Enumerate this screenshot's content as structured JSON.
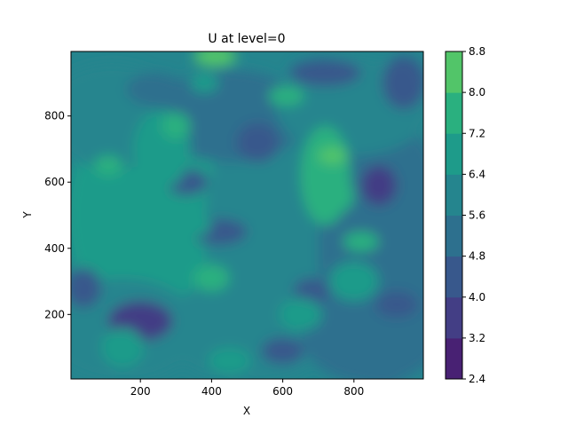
{
  "chart_data": {
    "type": "heatmap",
    "title": "U at level=0",
    "xlabel": "X",
    "ylabel": "Y",
    "xlim": [
      5,
      995
    ],
    "ylim": [
      5,
      995
    ],
    "x_ticks": [
      200,
      400,
      600,
      800
    ],
    "y_ticks": [
      200,
      400,
      600,
      800
    ],
    "colorbar": {
      "levels": [
        2.4,
        3.2,
        4.0,
        4.8,
        5.6,
        6.4,
        7.2,
        8.0,
        8.8
      ],
      "tick_labels": [
        "2.4",
        "3.2",
        "4.0",
        "4.8",
        "5.6",
        "6.4",
        "7.2",
        "8.0",
        "8.8"
      ],
      "colors": [
        "#482173",
        "#433e85",
        "#38588c",
        "#2d708e",
        "#25858e",
        "#1e9b8a",
        "#2ab07f",
        "#52c569",
        "#86d549",
        "#c2df23"
      ]
    },
    "colormap": "viridis",
    "grid": false,
    "field_summary": "filled contour of U over X and Y: mostly 4.0–7.2 with a band of higher values (7.2–8.8) near x≈380–800, peaks near (410,990), (740,680), (760,560), (400,310); lower values (3.2–4.8) around (200,180), (420,450), (870,590), (40,280)"
  }
}
